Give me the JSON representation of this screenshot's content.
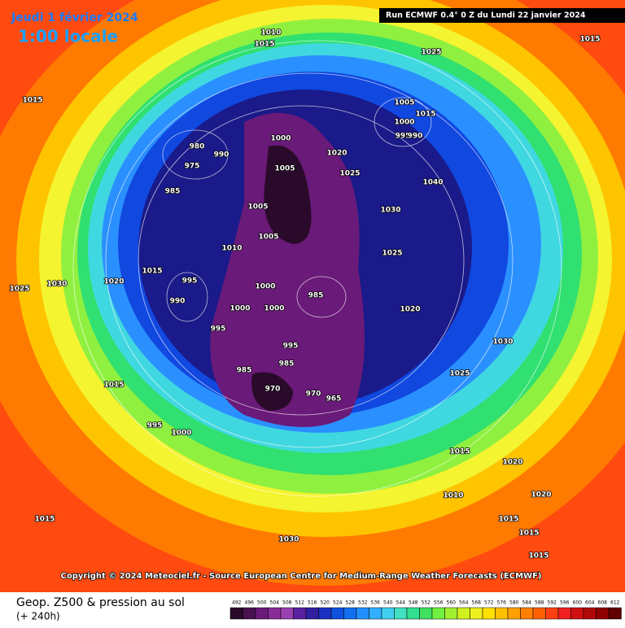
{
  "header": {
    "date": "Jeudi 1 février 2024",
    "time": "1:00 locale",
    "run": "Run ECMWF 0.4° 0 Z du Lundi 22 janvier 2024"
  },
  "copyright": "Copyright © 2024 Meteociel.fr - Source European Centre for Medium-Range Weather Forecasts (ECMWF)",
  "footer": {
    "title": "Geop. Z500 & pression au sol",
    "lead": "(+ 240h)"
  },
  "pressure_labels": [
    1010,
    1015,
    1025,
    1015,
    1015,
    1005,
    1015,
    1000,
    995,
    990,
    1000,
    980,
    990,
    975,
    985,
    1020,
    1025,
    1005,
    1030,
    1040,
    1005,
    1005,
    1010,
    1025,
    1015,
    1030,
    1025,
    1020,
    995,
    990,
    1000,
    1000,
    985,
    1000,
    1020,
    995,
    995,
    985,
    985,
    970,
    970,
    965,
    1030,
    1025,
    1015,
    995,
    1000,
    1015,
    1020,
    1020,
    1010,
    1015,
    1015,
    1030,
    1015,
    1015
  ],
  "scale": {
    "values": [
      492,
      496,
      500,
      504,
      508,
      512,
      516,
      520,
      524,
      528,
      532,
      536,
      540,
      544,
      548,
      552,
      556,
      560,
      564,
      568,
      572,
      576,
      580,
      584,
      588,
      592,
      596,
      600,
      604,
      608,
      612
    ],
    "colors": [
      "#2a0a2a",
      "#4a1050",
      "#6a1a78",
      "#8a2a98",
      "#9a40b0",
      "#5a20a0",
      "#3020a0",
      "#1a30c0",
      "#1050e0",
      "#1070f0",
      "#2090ff",
      "#30b0ff",
      "#40d0f0",
      "#40e0c0",
      "#30e090",
      "#40e060",
      "#70f040",
      "#a0f030",
      "#d0f020",
      "#f0f020",
      "#ffe000",
      "#ffc000",
      "#ffa000",
      "#ff8000",
      "#ff6000",
      "#ff4010",
      "#f02020",
      "#d01010",
      "#b00808",
      "#900000",
      "#600000"
    ]
  }
}
